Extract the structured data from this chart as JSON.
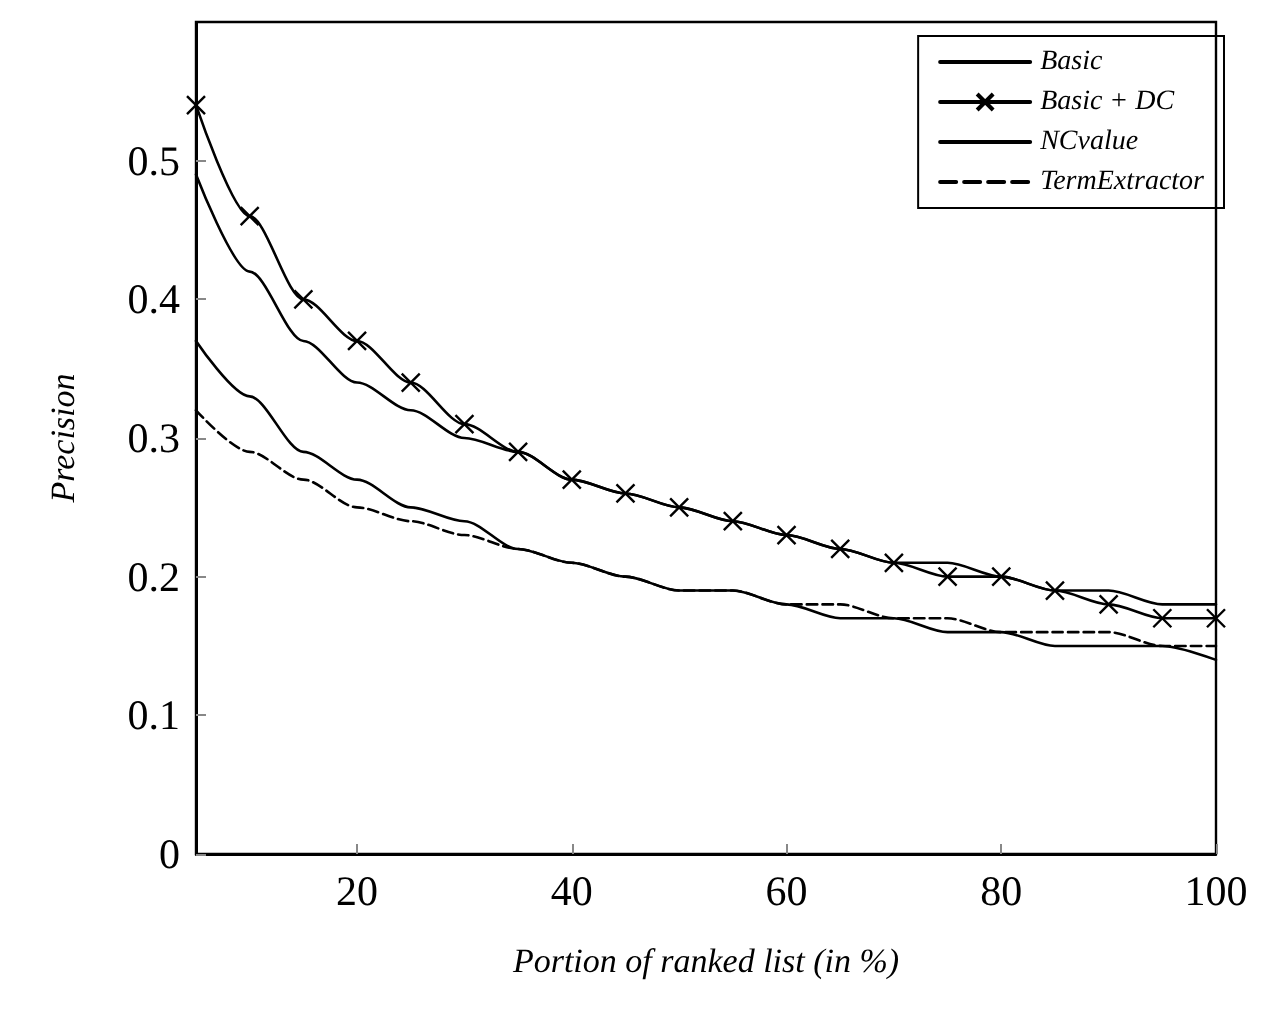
{
  "chart_data": {
    "type": "line",
    "xlabel": "Portion of ranked list (in %)",
    "ylabel": "Precision",
    "x": [
      5,
      10,
      15,
      20,
      25,
      30,
      35,
      40,
      45,
      50,
      55,
      60,
      65,
      70,
      75,
      80,
      85,
      90,
      95,
      100
    ],
    "xlim": [
      5,
      100
    ],
    "xticks": [
      20,
      40,
      60,
      80,
      100
    ],
    "ylim": [
      0,
      0.6
    ],
    "yticks": [
      0,
      0.1,
      0.2,
      0.3,
      0.4,
      0.5
    ],
    "grid": false,
    "legend": "top right",
    "series": [
      {
        "name": "Basic",
        "color": "#000000",
        "line_style": "solid",
        "values": [
          0.49,
          0.42,
          0.37,
          0.34,
          0.32,
          0.3,
          0.29,
          0.27,
          0.26,
          0.25,
          0.24,
          0.23,
          0.22,
          0.21,
          0.21,
          0.2,
          0.19,
          0.19,
          0.18,
          0.18
        ]
      },
      {
        "name": "Basic + DC",
        "color": "#000000",
        "marker": "cross",
        "line_style": "solid",
        "values": [
          0.54,
          0.46,
          0.4,
          0.37,
          0.34,
          0.31,
          0.29,
          0.27,
          0.26,
          0.25,
          0.24,
          0.23,
          0.22,
          0.21,
          0.2,
          0.2,
          0.19,
          0.18,
          0.17,
          0.17
        ]
      },
      {
        "name": "NCvalue",
        "color": "#000000",
        "line_style": "solid",
        "values": [
          0.37,
          0.33,
          0.29,
          0.27,
          0.25,
          0.24,
          0.22,
          0.21,
          0.2,
          0.19,
          0.19,
          0.18,
          0.17,
          0.17,
          0.16,
          0.16,
          0.15,
          0.15,
          0.15,
          0.14
        ]
      },
      {
        "name": "TermExtractor",
        "color": "#000000",
        "line_style": "dashed",
        "values": [
          0.32,
          0.29,
          0.27,
          0.25,
          0.24,
          0.23,
          0.22,
          0.21,
          0.2,
          0.19,
          0.19,
          0.18,
          0.18,
          0.17,
          0.17,
          0.16,
          0.16,
          0.16,
          0.15,
          0.15
        ]
      }
    ]
  }
}
